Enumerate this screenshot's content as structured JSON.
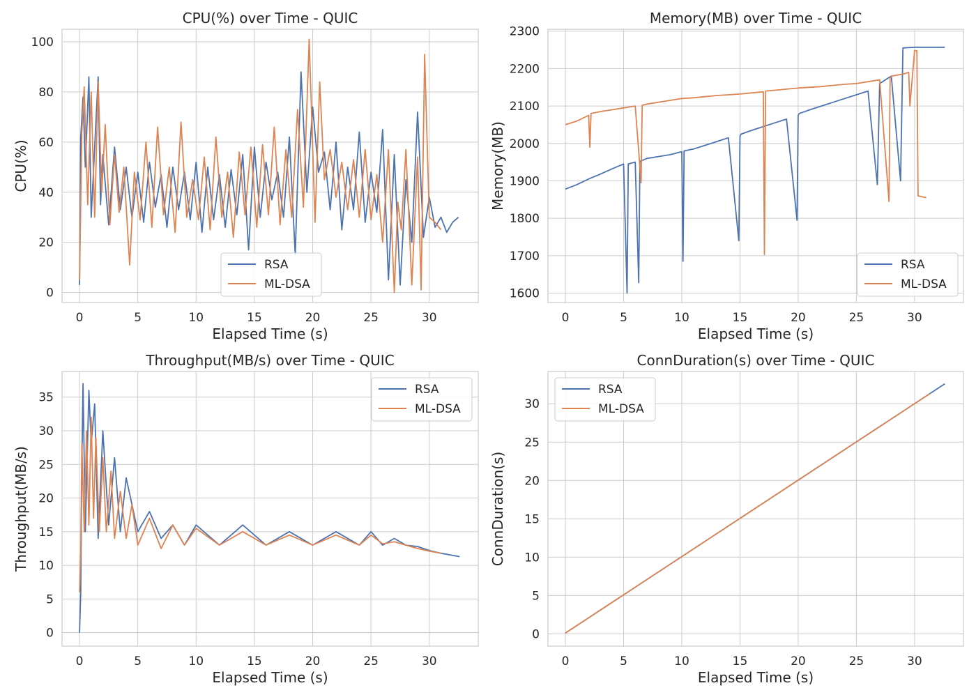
{
  "colors": {
    "rsa": "#4c72b0",
    "mldsa": "#dd8452",
    "grid": "#cccccc"
  },
  "chart_data": [
    {
      "type": "line",
      "title": "CPU(%) over Time - QUIC",
      "xlabel": "Elapsed Time (s)",
      "ylabel": "CPU(%)",
      "xlim": [
        -1.5,
        34.2
      ],
      "ylim": [
        -4,
        105
      ],
      "xticks": [
        0,
        5,
        10,
        15,
        20,
        25,
        30
      ],
      "yticks": [
        0,
        20,
        40,
        60,
        80,
        100
      ],
      "grid": true,
      "legend_position": "lower-center",
      "legend": [
        "RSA",
        "ML-DSA"
      ],
      "series": [
        {
          "name": "RSA",
          "x": [
            0.0,
            0.1,
            0.3,
            0.5,
            0.8,
            1.0,
            1.3,
            1.6,
            1.8,
            2.0,
            2.5,
            3.0,
            3.5,
            4.0,
            4.5,
            5.0,
            5.5,
            6.0,
            6.5,
            7.0,
            7.5,
            8.0,
            8.5,
            9.0,
            9.5,
            10.0,
            10.5,
            11.0,
            11.5,
            12.0,
            12.5,
            13.0,
            13.5,
            14.0,
            14.5,
            15.0,
            15.5,
            16.0,
            16.5,
            17.0,
            17.5,
            18.0,
            18.5,
            19.0,
            19.5,
            20.0,
            20.5,
            21.0,
            21.5,
            22.0,
            22.5,
            23.0,
            23.5,
            24.0,
            24.5,
            25.0,
            25.5,
            26.0,
            26.5,
            27.0,
            27.5,
            28.0,
            28.5,
            29.0,
            29.5,
            30.0,
            30.5,
            31.0,
            31.5,
            32.0,
            32.5
          ],
          "y": [
            3,
            62,
            78,
            50,
            86,
            30,
            58,
            86,
            35,
            55,
            27,
            58,
            33,
            50,
            30,
            48,
            28,
            52,
            34,
            47,
            26,
            50,
            33,
            48,
            29,
            52,
            24,
            50,
            29,
            47,
            26,
            49,
            31,
            55,
            17,
            58,
            30,
            52,
            37,
            48,
            30,
            62,
            15,
            88,
            40,
            74,
            48,
            56,
            33,
            60,
            25,
            50,
            33,
            64,
            28,
            48,
            32,
            65,
            5,
            55,
            3,
            45,
            20,
            72,
            22,
            38,
            26,
            30,
            24,
            28,
            30
          ]
        },
        {
          "name": "ML-DSA",
          "x": [
            0.0,
            0.2,
            0.4,
            0.7,
            1.0,
            1.3,
            1.6,
            1.9,
            2.2,
            2.6,
            3.0,
            3.4,
            3.8,
            4.3,
            4.7,
            5.2,
            5.7,
            6.2,
            6.7,
            7.2,
            7.7,
            8.2,
            8.7,
            9.2,
            9.7,
            10.2,
            10.7,
            11.2,
            11.7,
            12.2,
            12.7,
            13.2,
            13.7,
            14.2,
            14.7,
            15.2,
            15.7,
            16.2,
            16.7,
            17.2,
            17.7,
            18.2,
            18.7,
            19.2,
            19.7,
            20.2,
            20.6,
            21.0,
            21.5,
            22.0,
            22.5,
            23.0,
            23.5,
            24.0,
            24.5,
            25.0,
            25.5,
            26.0,
            26.5,
            27.0,
            27.3,
            27.6,
            28.0,
            28.5,
            29.0,
            29.3,
            29.6,
            30.0,
            30.5,
            31.0
          ],
          "y": [
            5,
            64,
            82,
            35,
            80,
            30,
            84,
            40,
            67,
            27,
            55,
            32,
            50,
            11,
            48,
            29,
            60,
            26,
            66,
            31,
            50,
            24,
            68,
            30,
            45,
            29,
            54,
            25,
            62,
            30,
            48,
            22,
            56,
            31,
            58,
            26,
            59,
            31,
            66,
            27,
            57,
            30,
            73,
            34,
            101,
            28,
            84,
            45,
            57,
            38,
            52,
            33,
            53,
            30,
            57,
            29,
            47,
            20,
            57,
            0,
            36,
            25,
            57,
            3,
            54,
            1,
            95,
            30,
            28,
            25
          ]
        }
      ]
    },
    {
      "type": "line",
      "title": "Memory(MB) over Time - QUIC",
      "xlabel": "Elapsed Time (s)",
      "ylabel": "Memory(MB)",
      "xlim": [
        -1.5,
        34.2
      ],
      "ylim": [
        1575,
        2305
      ],
      "xticks": [
        0,
        5,
        10,
        15,
        20,
        25,
        30
      ],
      "yticks": [
        1600,
        1700,
        1800,
        1900,
        2000,
        2100,
        2200,
        2300
      ],
      "grid": true,
      "legend_position": "lower-right",
      "legend": [
        "RSA",
        "ML-DSA"
      ],
      "series": [
        {
          "name": "RSA",
          "x": [
            0.0,
            1.0,
            2.0,
            3.0,
            4.0,
            5.0,
            5.3,
            5.4,
            6.0,
            6.3,
            6.4,
            7.0,
            8.0,
            9.0,
            10.0,
            10.1,
            10.2,
            11.0,
            12.0,
            13.0,
            14.0,
            14.9,
            15.0,
            15.1,
            16.0,
            17.0,
            18.0,
            19.0,
            19.9,
            20.0,
            20.1,
            21.0,
            22.0,
            23.0,
            24.0,
            25.0,
            26.0,
            26.8,
            27.0,
            28.0,
            28.8,
            29.0,
            30.0,
            31.0,
            32.6
          ],
          "y": [
            1878,
            1890,
            1905,
            1918,
            1932,
            1945,
            1600,
            1945,
            1950,
            1628,
            1952,
            1960,
            1965,
            1970,
            1978,
            1685,
            1980,
            1985,
            1995,
            2005,
            2015,
            1740,
            2020,
            2025,
            2035,
            2045,
            2055,
            2065,
            1795,
            2075,
            2080,
            2090,
            2100,
            2110,
            2120,
            2130,
            2140,
            1890,
            2160,
            2180,
            1900,
            2255,
            2257,
            2257,
            2257
          ]
        },
        {
          "name": "ML-DSA",
          "x": [
            0.0,
            1.0,
            2.0,
            2.1,
            2.2,
            3.0,
            4.0,
            5.0,
            6.0,
            6.5,
            6.6,
            7.0,
            8.0,
            9.0,
            10.0,
            11.0,
            12.0,
            13.0,
            14.0,
            15.0,
            16.0,
            17.0,
            17.1,
            17.2,
            18.0,
            19.0,
            20.0,
            21.0,
            22.0,
            23.0,
            24.0,
            25.0,
            26.0,
            27.0,
            27.8,
            27.9,
            28.0,
            29.0,
            29.5,
            29.6,
            30.0,
            30.2,
            30.3,
            31.0
          ],
          "y": [
            2050,
            2060,
            2075,
            1990,
            2080,
            2085,
            2090,
            2095,
            2100,
            1895,
            2102,
            2105,
            2110,
            2115,
            2120,
            2122,
            2125,
            2128,
            2130,
            2132,
            2135,
            2138,
            1703,
            2140,
            2142,
            2145,
            2148,
            2150,
            2152,
            2155,
            2158,
            2160,
            2165,
            2170,
            1845,
            2175,
            2180,
            2185,
            2190,
            2100,
            2248,
            2248,
            1860,
            1855
          ]
        }
      ]
    },
    {
      "type": "line",
      "title": "Throughput(MB/s) over Time - QUIC",
      "xlabel": "Elapsed Time (s)",
      "ylabel": "Throughput(MB/s)",
      "xlim": [
        -1.5,
        34.2
      ],
      "ylim": [
        -2,
        38.8
      ],
      "xticks": [
        0,
        5,
        10,
        15,
        20,
        25,
        30
      ],
      "yticks": [
        0,
        5,
        10,
        15,
        20,
        25,
        30,
        35
      ],
      "grid": true,
      "legend_position": "top-right",
      "legend": [
        "RSA",
        "ML-DSA"
      ],
      "series": [
        {
          "name": "RSA",
          "x": [
            0.0,
            0.1,
            0.2,
            0.3,
            0.5,
            0.8,
            1.0,
            1.3,
            1.6,
            2.0,
            2.5,
            3.0,
            3.5,
            4.0,
            5.0,
            6.0,
            7.0,
            8.0,
            9.0,
            10.0,
            12.0,
            14.0,
            16.0,
            18.0,
            20.0,
            22.0,
            24.0,
            25.0,
            26.0,
            27.0,
            28.0,
            29.0,
            30.0,
            31.0,
            32.6
          ],
          "y": [
            0,
            6,
            25,
            37,
            15,
            36,
            28,
            34,
            14,
            30,
            16,
            26,
            15,
            23,
            15,
            18,
            14,
            16,
            13,
            16,
            13,
            16,
            13,
            15,
            13,
            15,
            13,
            15,
            13,
            14,
            13,
            12.8,
            12.2,
            11.8,
            11.3
          ]
        },
        {
          "name": "ML-DSA",
          "x": [
            0.0,
            0.1,
            0.2,
            0.4,
            0.6,
            0.8,
            1.0,
            1.2,
            1.4,
            1.7,
            2.0,
            2.3,
            2.7,
            3.0,
            3.5,
            4.0,
            4.5,
            5.0,
            6.0,
            7.0,
            8.0,
            9.0,
            10.0,
            12.0,
            14.0,
            16.0,
            18.0,
            20.0,
            22.0,
            24.0,
            25.0,
            26.0,
            27.0,
            28.0,
            29.0,
            30.0,
            31.0
          ],
          "y": [
            6,
            12,
            28,
            15,
            30,
            16,
            32,
            17,
            29,
            15,
            26,
            15,
            24,
            14,
            21,
            14,
            19,
            13,
            17,
            12.5,
            16,
            13,
            15.5,
            13,
            15,
            13,
            14.5,
            13,
            14.5,
            13,
            14.5,
            13.2,
            13.5,
            13,
            12.5,
            12.1,
            11.8
          ]
        }
      ]
    },
    {
      "type": "line",
      "title": "ConnDuration(s) over Time - QUIC",
      "xlabel": "Elapsed Time (s)",
      "ylabel": "ConnDuration(s)",
      "xlim": [
        -1.5,
        34.2
      ],
      "ylim": [
        -1.6,
        34.2
      ],
      "xticks": [
        0,
        5,
        10,
        15,
        20,
        25,
        30
      ],
      "yticks": [
        0,
        5,
        10,
        15,
        20,
        25,
        30
      ],
      "grid": true,
      "legend_position": "top-left",
      "legend": [
        "RSA",
        "ML-DSA"
      ],
      "series": [
        {
          "name": "RSA",
          "x": [
            0.0,
            32.6
          ],
          "y": [
            0.1,
            32.6
          ]
        },
        {
          "name": "ML-DSA",
          "x": [
            0.0,
            31.3
          ],
          "y": [
            0.1,
            31.3
          ]
        }
      ]
    }
  ]
}
